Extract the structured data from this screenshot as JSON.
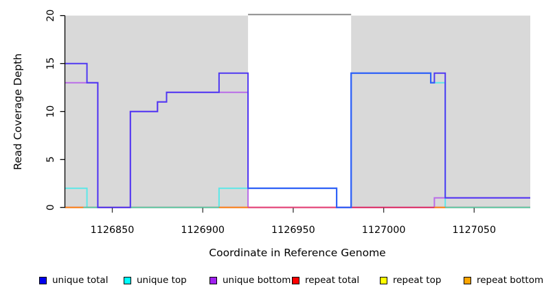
{
  "y_axis": {
    "label": "Read Coverage Depth",
    "ticks": [
      "0",
      "5",
      "10",
      "15",
      "20"
    ],
    "range": [
      0,
      20
    ]
  },
  "x_axis": {
    "label": "Coordinate in Reference Genome",
    "ticks": [
      "1126850",
      "1126900",
      "1126950",
      "1127000",
      "1127050"
    ],
    "tick_values": [
      1126850,
      1126900,
      1126950,
      1127000,
      1127050
    ],
    "range": [
      1126824,
      1127081
    ]
  },
  "legend": {
    "items": [
      {
        "label": "unique total",
        "color": "#0000EE"
      },
      {
        "label": "unique top",
        "color": "#00FFFF"
      },
      {
        "label": "unique bottom",
        "color": "#A020F0"
      },
      {
        "label": "repeat total",
        "color": "#FF0000"
      },
      {
        "label": "repeat top",
        "color": "#FFFF00"
      },
      {
        "label": "repeat bottom",
        "color": "#FFA500"
      }
    ]
  },
  "chart_data": {
    "type": "line",
    "title": "",
    "xlabel": "Coordinate in Reference Genome",
    "ylabel": "Read Coverage Depth",
    "xlim": [
      1126824,
      1127081
    ],
    "ylim": [
      0,
      20
    ],
    "grid": false,
    "legend_position": "bottom",
    "series": [
      {
        "name": "unique total",
        "steps": [
          [
            1126824,
            15
          ],
          [
            1126836,
            13
          ],
          [
            1126842,
            0
          ],
          [
            1126860,
            10
          ],
          [
            1126875,
            11
          ],
          [
            1126880,
            12
          ],
          [
            1126909,
            14
          ],
          [
            1126925,
            2
          ],
          [
            1126974,
            0
          ],
          [
            1126982,
            14
          ],
          [
            1127026,
            13
          ],
          [
            1127028,
            14
          ],
          [
            1127034,
            1
          ],
          [
            1127081,
            1
          ]
        ]
      },
      {
        "name": "unique top",
        "steps": [
          [
            1126824,
            2
          ],
          [
            1126836,
            0
          ],
          [
            1126909,
            2
          ],
          [
            1126974,
            0
          ],
          [
            1126982,
            14
          ],
          [
            1127026,
            13
          ],
          [
            1127034,
            0
          ],
          [
            1127081,
            0
          ]
        ]
      },
      {
        "name": "unique bottom",
        "steps": [
          [
            1126824,
            13
          ],
          [
            1126842,
            0
          ],
          [
            1126860,
            10
          ],
          [
            1126875,
            11
          ],
          [
            1126880,
            12
          ],
          [
            1126925,
            0
          ],
          [
            1127028,
            1
          ],
          [
            1127081,
            1
          ]
        ]
      },
      {
        "name": "repeat total",
        "steps": [
          [
            1126824,
            0
          ],
          [
            1127081,
            0
          ]
        ]
      },
      {
        "name": "repeat top",
        "steps": [
          [
            1126824,
            0
          ],
          [
            1127081,
            0
          ]
        ]
      },
      {
        "name": "repeat bottom",
        "steps": [
          [
            1126824,
            0
          ],
          [
            1127081,
            0
          ]
        ]
      }
    ],
    "shaded_regions": [
      [
        1126824,
        1126925
      ],
      [
        1126982,
        1127081
      ]
    ],
    "clip_line": {
      "value": 20,
      "span": [
        1126925,
        1126982
      ]
    }
  },
  "render": {
    "background_gray": "#D9D9D9",
    "clip_line_gray": "#8C8C8C",
    "display_colors": {
      "blue": "#4F38F2",
      "plum": "#B96CE8",
      "paleCyan": "#5CE8E8",
      "dodger": "#2E63F8",
      "crimson": "#DE2E5F",
      "orange": "#F98B1F",
      "green": "#64CFA7",
      "rose": "#E85480"
    },
    "overlay_total_top": [
      [
        1126925,
        2
      ],
      [
        1126974,
        0
      ],
      [
        1126982,
        14
      ],
      [
        1127026,
        13
      ],
      [
        1127028,
        13
      ]
    ],
    "baseline_segments": [
      [
        1126824,
        1126834,
        "orange"
      ],
      [
        1126834,
        1126842,
        "green"
      ],
      [
        1126860,
        1126909,
        "green"
      ],
      [
        1126909,
        1126925,
        "orange"
      ],
      [
        1126925,
        1126974,
        "rose"
      ],
      [
        1127028,
        1127034,
        "orange"
      ],
      [
        1127034,
        1127081,
        "green"
      ]
    ]
  }
}
